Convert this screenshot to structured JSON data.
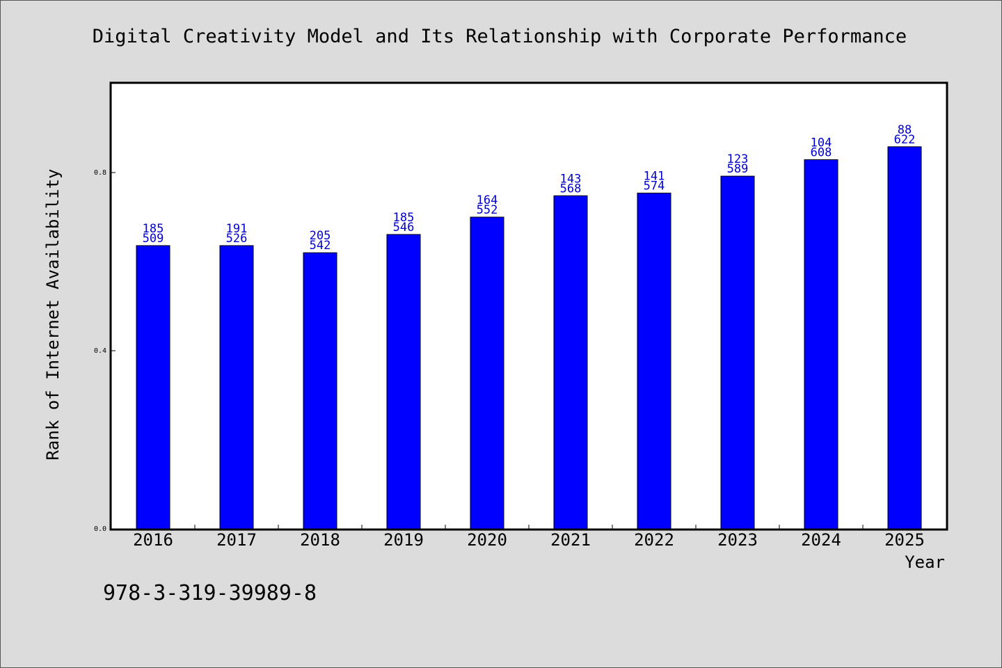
{
  "chart_data": {
    "type": "bar",
    "title": "Digital Creativity Model and Its Relationship with Corporate Performance",
    "xlabel": "Year",
    "ylabel": "Rank of Internet Availability",
    "categories": [
      "2016",
      "2017",
      "2018",
      "2019",
      "2020",
      "2021",
      "2022",
      "2023",
      "2024",
      "2025"
    ],
    "values": [
      0.636,
      0.636,
      0.62,
      0.661,
      0.7,
      0.748,
      0.754,
      0.792,
      0.829,
      0.858
    ],
    "labels_top": [
      "185",
      "191",
      "205",
      "185",
      "164",
      "143",
      "141",
      "123",
      "104",
      "88"
    ],
    "labels_bottom": [
      "509",
      "526",
      "542",
      "546",
      "552",
      "568",
      "574",
      "589",
      "608",
      "622"
    ],
    "ylim": [
      0,
      1.0
    ],
    "yticks": [
      0.0,
      0.4,
      0.8
    ],
    "ytick_labels": [
      "0.0",
      "0.4",
      "0.8"
    ],
    "grid": false,
    "bar_color": "#0000ff",
    "label_color": "#0000cc"
  },
  "footer_text": "978-3-319-39989-8"
}
